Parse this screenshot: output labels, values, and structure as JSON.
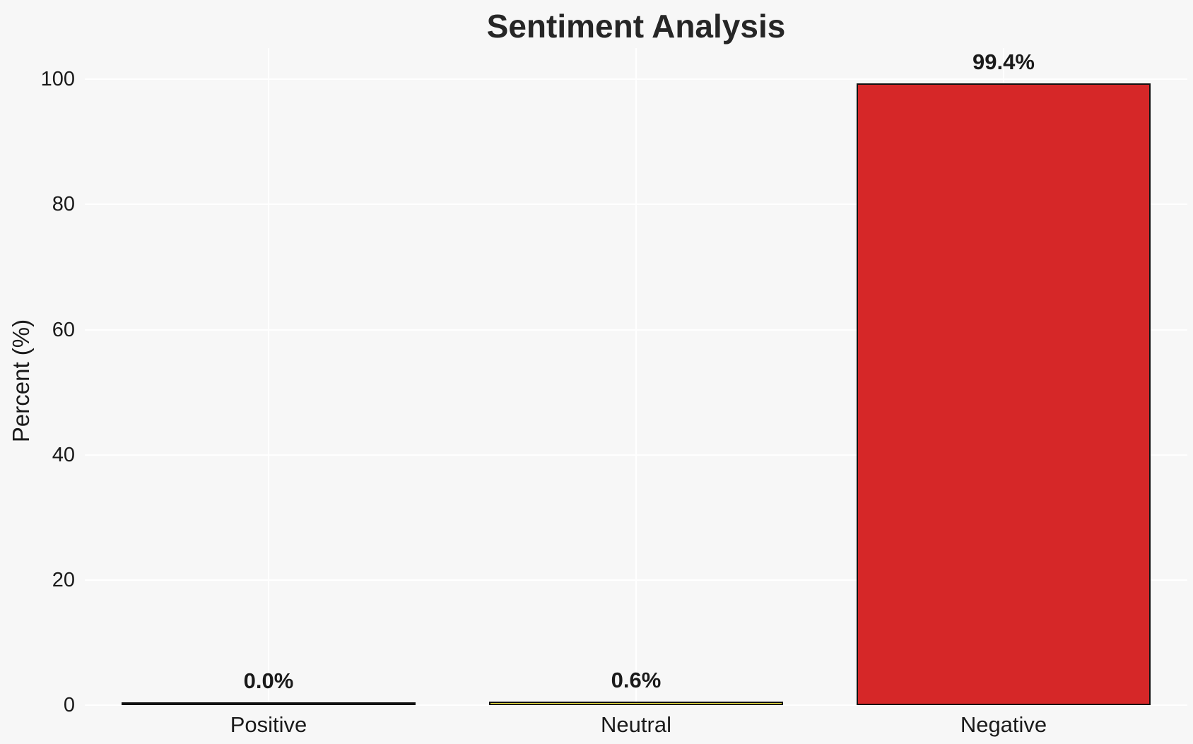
{
  "chart_data": {
    "type": "bar",
    "title": "Sentiment Analysis",
    "ylabel": "Percent (%)",
    "xlabel": "",
    "categories": [
      "Positive",
      "Neutral",
      "Negative"
    ],
    "values": [
      0.0,
      0.6,
      99.4
    ],
    "value_labels": [
      "0.0%",
      "0.6%",
      "99.4%"
    ],
    "bar_colors": [
      "#f7f7f7",
      "#f0e442",
      "#d62728"
    ],
    "bar_edge_color": "#111111",
    "ylim": [
      0,
      105
    ],
    "yticks": [
      0,
      20,
      40,
      60,
      80,
      100
    ],
    "grid": true,
    "background_color": "#f7f7f7",
    "gridline_color": "#ffffff",
    "legend": null
  }
}
